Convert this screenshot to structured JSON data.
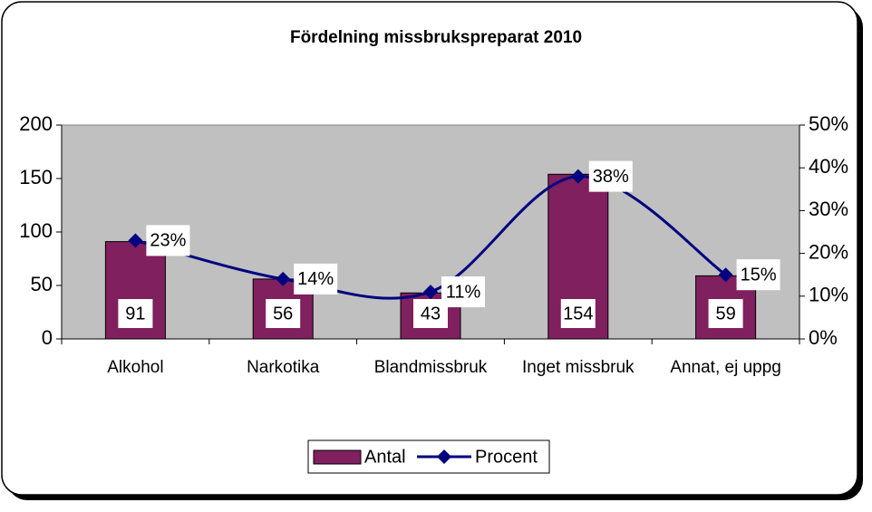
{
  "chart_data": {
    "type": "bar",
    "title": "Fördelning missbrukspreparat 2010",
    "categories": [
      "Alkohol",
      "Narkotika",
      "Blandmissbruk",
      "Inget missbruk",
      "Annat, ej uppg"
    ],
    "series": [
      {
        "name": "Antal",
        "color": "#80205f",
        "values": [
          91,
          56,
          43,
          154,
          59
        ]
      },
      {
        "name": "Procent",
        "type": "line",
        "axis": "y2",
        "color": "#000080",
        "values": [
          23,
          14,
          11,
          38,
          15
        ],
        "value_labels": [
          "23%",
          "14%",
          "11%",
          "38%",
          "15%"
        ]
      }
    ],
    "ylim": [
      0,
      200
    ],
    "yticks": [
      0,
      50,
      100,
      150,
      200
    ],
    "y2lim": [
      0,
      50
    ],
    "y2ticks": [
      {
        "value": 0,
        "label": "0%"
      },
      {
        "value": 10,
        "label": "10%"
      },
      {
        "value": 20,
        "label": "20%"
      },
      {
        "value": 30,
        "label": "30%"
      },
      {
        "value": 40,
        "label": "40%"
      },
      {
        "value": 50,
        "label": "50%"
      }
    ],
    "grid": false,
    "legend": "bottom"
  }
}
